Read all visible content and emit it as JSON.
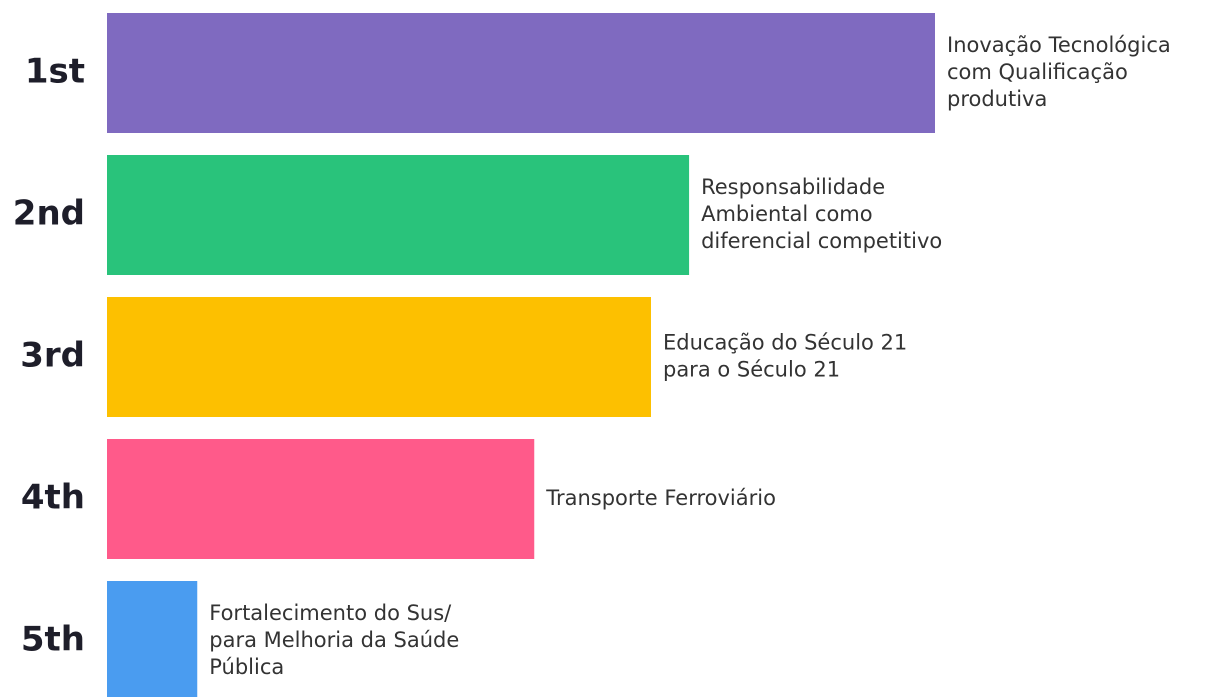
{
  "chart_data": {
    "type": "ranking",
    "categories": [
      "1st",
      "2nd",
      "3rd",
      "4th",
      "5th"
    ],
    "labels": [
      [
        "Inovação Tecnológica",
        "com Qualificação",
        "produtiva"
      ],
      [
        "Responsabilidade",
        "Ambiental como",
        "diferencial competitivo"
      ],
      [
        "Educação do Século 21",
        "para o Século 21"
      ],
      [
        "Transporte Ferroviário"
      ],
      [
        "Fortalecimento do Sus/",
        "para Melhoria da Saúde",
        "Pública"
      ]
    ],
    "values": [
      100,
      70.3,
      65.7,
      51.6,
      10.9
    ],
    "colors": [
      "#7f6ac0",
      "#29c37b",
      "#fdc000",
      "#ff5a8a",
      "#4a9cf0"
    ],
    "xlim": [
      0,
      100
    ]
  }
}
